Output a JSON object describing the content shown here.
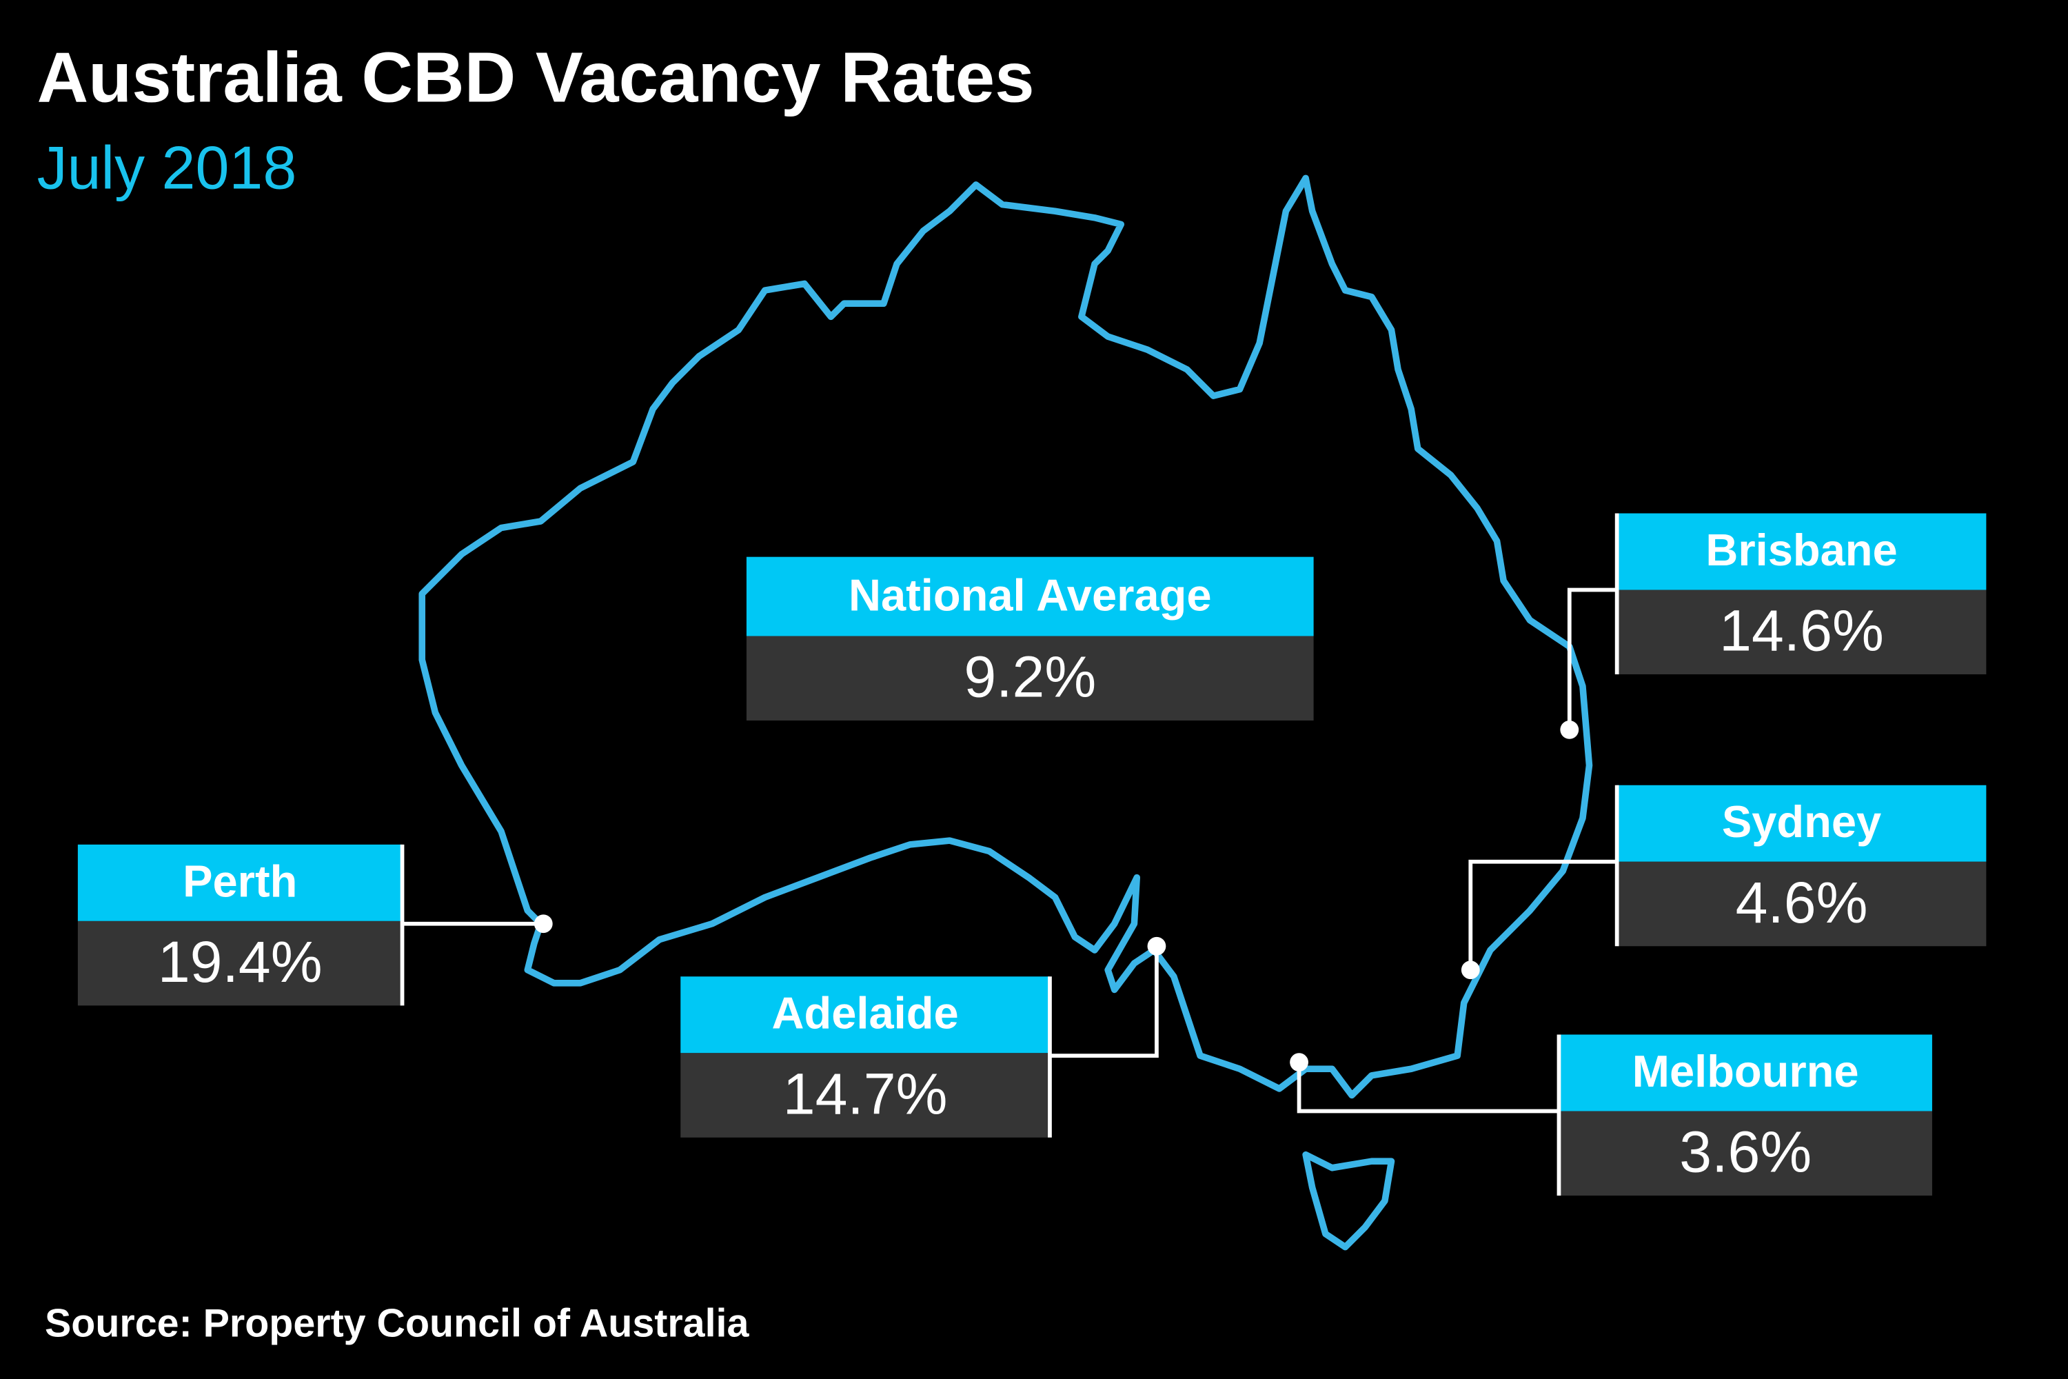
{
  "header": {
    "title": "Australia CBD Vacancy Rates",
    "subtitle": "July 2018"
  },
  "national": {
    "label": "National Average",
    "value": "9.2%"
  },
  "cities": [
    {
      "name": "Perth",
      "value": "19.4%"
    },
    {
      "name": "Adelaide",
      "value": "14.7%"
    },
    {
      "name": "Brisbane",
      "value": "14.6%"
    },
    {
      "name": "Sydney",
      "value": "4.6%"
    },
    {
      "name": "Melbourne",
      "value": "3.6%"
    }
  ],
  "source": "Source: Property Council of Australia"
}
